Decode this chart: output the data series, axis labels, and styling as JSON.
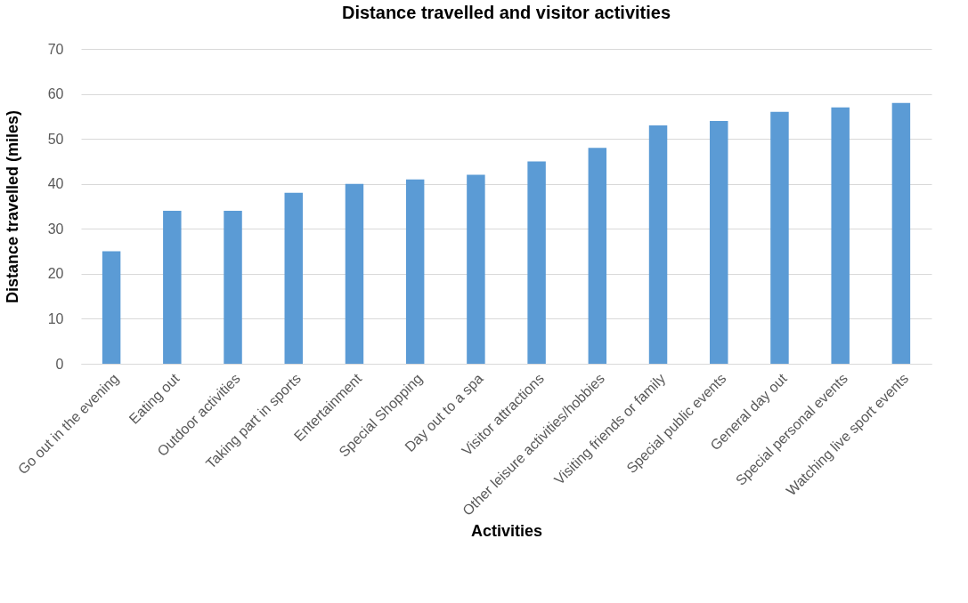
{
  "chart_data": {
    "type": "bar",
    "title": "Distance travelled and visitor activities",
    "xlabel": "Activities",
    "ylabel": "Distance travelled (miles)",
    "categories": [
      "Go out in the evening",
      "Eating out",
      "Outdoor activities",
      "Taking part in sports",
      "Entertainment",
      "Special Shopping",
      "Day out to a spa",
      "Visitor attractions",
      "Other leisure activities/hobbies",
      "Visiting friends or family",
      "Special public events",
      "General day out",
      "Special personal events",
      "Watching live sport events"
    ],
    "values": [
      25,
      34,
      34,
      38,
      40,
      41,
      42,
      45,
      48,
      53,
      54,
      56,
      57,
      58
    ],
    "color": "#5b9bd5",
    "ylim": [
      0,
      70
    ],
    "yticks": [
      0,
      10,
      20,
      30,
      40,
      50,
      60,
      70
    ],
    "grid": "y"
  }
}
